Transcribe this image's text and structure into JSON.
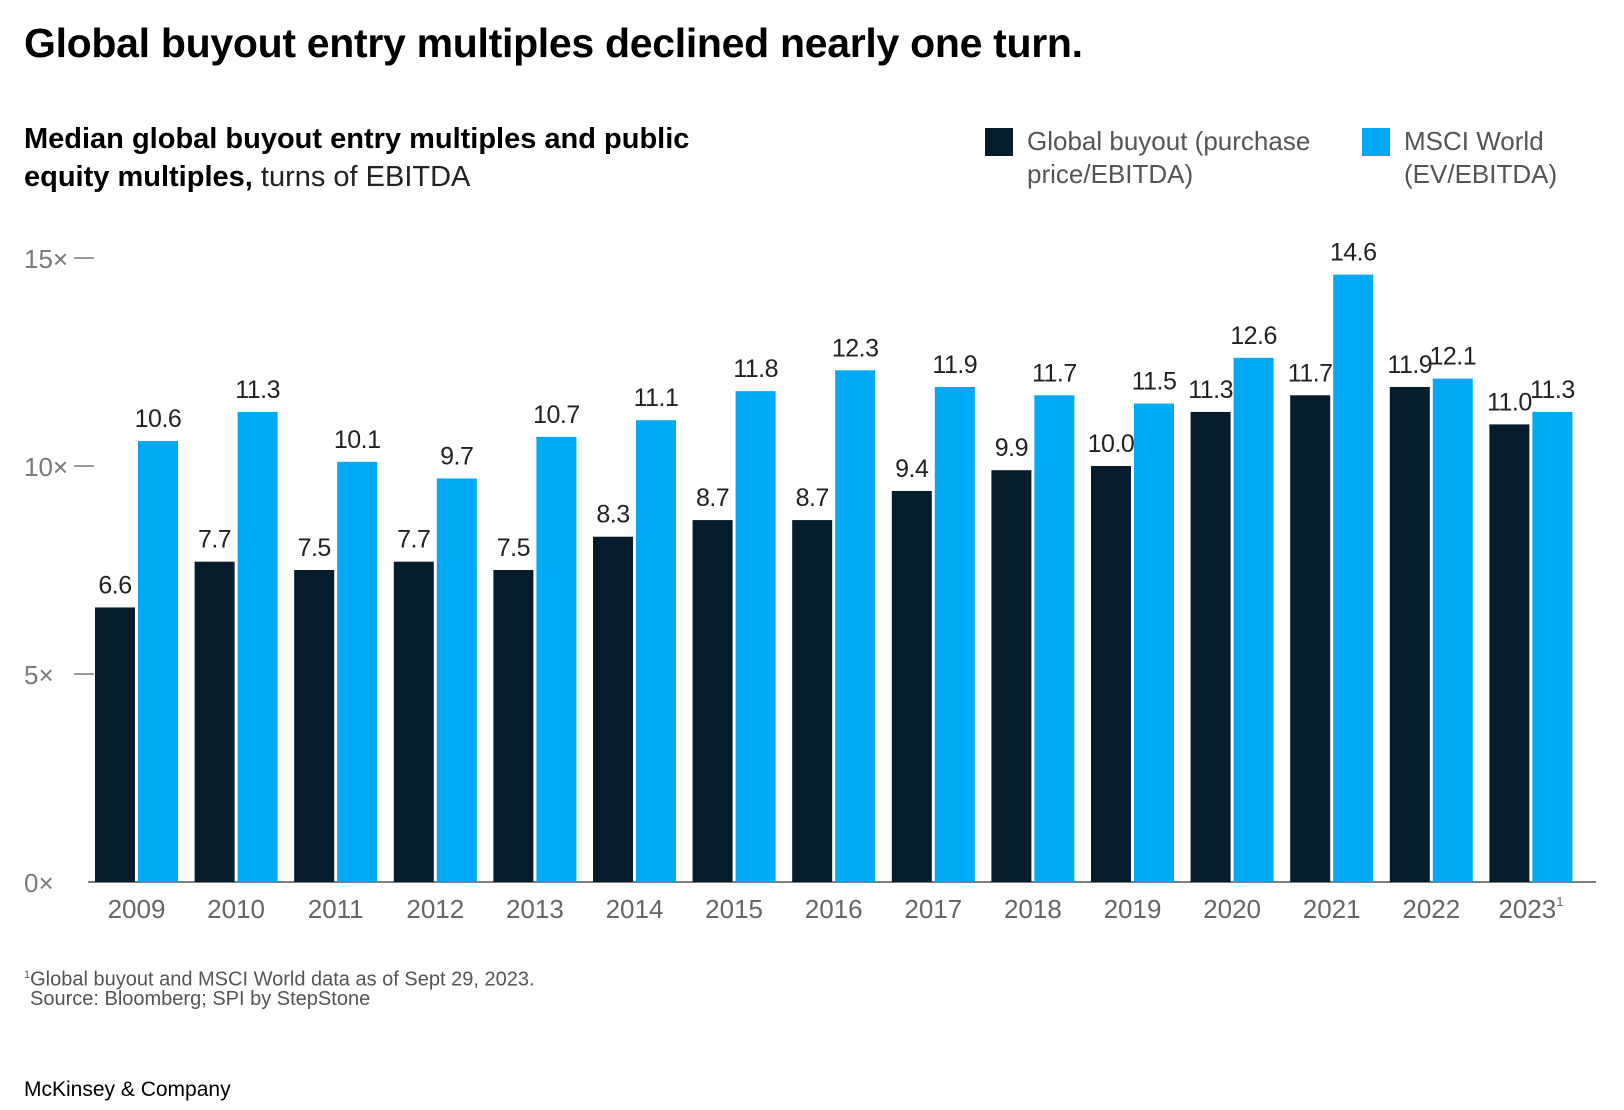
{
  "headline": "Global buyout entry multiples declined nearly one turn.",
  "subtitle_bold": "Median global buyout entry multiples and public equity multiples,",
  "subtitle_light": " turns of EBITDA",
  "legend": [
    {
      "label": "Global buyout (purchase\nprice/EBITDA)",
      "color": "#051c2c"
    },
    {
      "label": "MSCI World\n(EV/EBITDA)",
      "color": "#00a9f4"
    }
  ],
  "footnote_marker": "1",
  "footnote": "Global buyout and MSCI World data as of Sept 29, 2023.",
  "source": "Source: Bloomberg; SPI by StepStone",
  "brand": "McKinsey & Company",
  "chart_data": {
    "type": "bar",
    "categories": [
      "2009",
      "2010",
      "2011",
      "2012",
      "2013",
      "2014",
      "2015",
      "2016",
      "2017",
      "2018",
      "2019",
      "2020",
      "2021",
      "2022",
      "2023"
    ],
    "category_superscripts": {
      "2023": "1"
    },
    "series": [
      {
        "name": "Global buyout (purchase price/EBITDA)",
        "color": "#051c2c",
        "values": [
          6.6,
          7.7,
          7.5,
          7.7,
          7.5,
          8.3,
          8.7,
          8.7,
          9.4,
          9.9,
          10.0,
          11.3,
          11.7,
          11.9,
          11.0
        ],
        "labels": [
          "6.6",
          "7.7",
          "7.5",
          "7.7",
          "7.5",
          "8.3",
          "8.7",
          "8.7",
          "9.4",
          "9.9",
          "10.0",
          "11.3",
          "11.7",
          "11.9",
          "11.0"
        ]
      },
      {
        "name": "MSCI World (EV/EBITDA)",
        "color": "#00a9f4",
        "values": [
          10.6,
          11.3,
          10.1,
          9.7,
          10.7,
          11.1,
          11.8,
          12.3,
          11.9,
          11.7,
          11.5,
          12.6,
          14.6,
          12.1,
          11.3
        ],
        "labels": [
          "10.6",
          "11.3",
          "10.1",
          "9.7",
          "10.7",
          "11.1",
          "11.8",
          "12.3",
          "11.9",
          "11.7",
          "11.5",
          "12.6",
          "14.6",
          "12.1",
          "11.3"
        ]
      }
    ],
    "y_ticks": [
      {
        "value": 0,
        "label": "0×"
      },
      {
        "value": 5,
        "label": "5×"
      },
      {
        "value": 10,
        "label": "10×"
      },
      {
        "value": 15,
        "label": "15×"
      }
    ],
    "ylim": [
      0,
      15
    ],
    "grid": false,
    "legend_position": "top-right"
  }
}
